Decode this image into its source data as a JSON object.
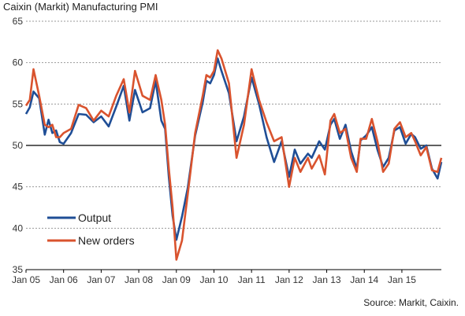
{
  "title": "Caixin (Markit) Manufacturing PMI",
  "source": "Source: Markit, Caixin.",
  "chart_data": {
    "type": "line",
    "title": "Caixin (Markit) Manufacturing PMI",
    "ylim": [
      35,
      65
    ],
    "y_ticks": [
      "35",
      "40",
      "45",
      "50",
      "55",
      "60",
      "65"
    ],
    "x_ticks": [
      "Jan 05",
      "Jan 06",
      "Jan 07",
      "Jan 08",
      "Jan 09",
      "Jan 10",
      "Jan 11",
      "Jan 12",
      "Jan 13",
      "Jan 14",
      "Jan 15"
    ],
    "x_start": "Jan 05",
    "x_end": "Oct 15",
    "reference_line": 50,
    "grid": "horizontal dotted",
    "legend_position": "bottom-left",
    "series": [
      {
        "name": "Output",
        "color": "#1f4e96",
        "values": [
          [
            2005.0,
            53.8
          ],
          [
            2005.1,
            54.6
          ],
          [
            2005.2,
            56.5
          ],
          [
            2005.35,
            55.7
          ],
          [
            2005.5,
            51.3
          ],
          [
            2005.6,
            53.1
          ],
          [
            2005.7,
            51.5
          ],
          [
            2005.8,
            51.8
          ],
          [
            2005.9,
            50.4
          ],
          [
            2006.0,
            50.2
          ],
          [
            2006.2,
            51.5
          ],
          [
            2006.4,
            53.8
          ],
          [
            2006.6,
            53.7
          ],
          [
            2006.8,
            52.8
          ],
          [
            2007.0,
            53.5
          ],
          [
            2007.2,
            52.3
          ],
          [
            2007.4,
            54.7
          ],
          [
            2007.6,
            57.2
          ],
          [
            2007.75,
            53.0
          ],
          [
            2007.9,
            56.7
          ],
          [
            2008.1,
            54.0
          ],
          [
            2008.3,
            54.5
          ],
          [
            2008.45,
            57.8
          ],
          [
            2008.6,
            53.0
          ],
          [
            2008.7,
            52.0
          ],
          [
            2008.8,
            46.2
          ],
          [
            2008.9,
            41.5
          ],
          [
            2009.0,
            38.6
          ],
          [
            2009.15,
            41.4
          ],
          [
            2009.3,
            44.8
          ],
          [
            2009.5,
            51.2
          ],
          [
            2009.7,
            55.2
          ],
          [
            2009.8,
            57.8
          ],
          [
            2009.9,
            57.5
          ],
          [
            2010.0,
            58.5
          ],
          [
            2010.1,
            60.5
          ],
          [
            2010.2,
            59.0
          ],
          [
            2010.4,
            56.3
          ],
          [
            2010.6,
            50.5
          ],
          [
            2010.8,
            53.5
          ],
          [
            2011.0,
            58.2
          ],
          [
            2011.2,
            55.0
          ],
          [
            2011.4,
            51.0
          ],
          [
            2011.6,
            48.0
          ],
          [
            2011.8,
            50.5
          ],
          [
            2012.0,
            46.2
          ],
          [
            2012.15,
            49.5
          ],
          [
            2012.3,
            47.8
          ],
          [
            2012.5,
            49.0
          ],
          [
            2012.6,
            48.5
          ],
          [
            2012.8,
            50.5
          ],
          [
            2012.95,
            49.5
          ],
          [
            2013.1,
            52.5
          ],
          [
            2013.2,
            53.2
          ],
          [
            2013.35,
            50.8
          ],
          [
            2013.5,
            52.5
          ],
          [
            2013.65,
            49.3
          ],
          [
            2013.8,
            47.2
          ],
          [
            2013.9,
            50.6
          ],
          [
            2014.05,
            51.2
          ],
          [
            2014.2,
            52.2
          ],
          [
            2014.35,
            49.5
          ],
          [
            2014.5,
            47.4
          ],
          [
            2014.65,
            48.5
          ],
          [
            2014.8,
            51.8
          ],
          [
            2014.95,
            52.2
          ],
          [
            2015.1,
            50.2
          ],
          [
            2015.25,
            51.4
          ],
          [
            2015.35,
            51.0
          ],
          [
            2015.5,
            49.6
          ],
          [
            2015.65,
            50.0
          ],
          [
            2015.8,
            47.2
          ],
          [
            2015.95,
            46.0
          ],
          [
            2016.05,
            48.0
          ]
        ]
      },
      {
        "name": "New orders",
        "color": "#d9532e",
        "values": [
          [
            2005.0,
            54.8
          ],
          [
            2005.1,
            55.5
          ],
          [
            2005.2,
            59.2
          ],
          [
            2005.35,
            56.0
          ],
          [
            2005.5,
            52.5
          ],
          [
            2005.6,
            52.2
          ],
          [
            2005.7,
            52.5
          ],
          [
            2005.8,
            51.0
          ],
          [
            2005.9,
            51.0
          ],
          [
            2006.0,
            51.5
          ],
          [
            2006.2,
            52.0
          ],
          [
            2006.4,
            54.9
          ],
          [
            2006.6,
            54.5
          ],
          [
            2006.8,
            53.0
          ],
          [
            2007.0,
            54.2
          ],
          [
            2007.2,
            53.5
          ],
          [
            2007.4,
            56.0
          ],
          [
            2007.6,
            58.0
          ],
          [
            2007.75,
            54.0
          ],
          [
            2007.9,
            59.0
          ],
          [
            2008.1,
            56.0
          ],
          [
            2008.3,
            55.5
          ],
          [
            2008.45,
            58.5
          ],
          [
            2008.6,
            55.5
          ],
          [
            2008.7,
            52.5
          ],
          [
            2008.8,
            47.2
          ],
          [
            2008.9,
            42.5
          ],
          [
            2009.0,
            36.2
          ],
          [
            2009.15,
            38.5
          ],
          [
            2009.3,
            44.0
          ],
          [
            2009.5,
            51.5
          ],
          [
            2009.7,
            56.0
          ],
          [
            2009.8,
            58.5
          ],
          [
            2009.9,
            58.2
          ],
          [
            2010.0,
            59.0
          ],
          [
            2010.1,
            61.5
          ],
          [
            2010.2,
            60.5
          ],
          [
            2010.4,
            57.5
          ],
          [
            2010.6,
            48.5
          ],
          [
            2010.8,
            52.5
          ],
          [
            2011.0,
            59.2
          ],
          [
            2011.2,
            55.5
          ],
          [
            2011.4,
            52.8
          ],
          [
            2011.6,
            50.5
          ],
          [
            2011.8,
            51.0
          ],
          [
            2012.0,
            45.0
          ],
          [
            2012.15,
            48.5
          ],
          [
            2012.3,
            46.8
          ],
          [
            2012.5,
            48.5
          ],
          [
            2012.6,
            47.2
          ],
          [
            2012.8,
            48.8
          ],
          [
            2012.95,
            46.5
          ],
          [
            2013.1,
            53.0
          ],
          [
            2013.2,
            53.8
          ],
          [
            2013.35,
            51.5
          ],
          [
            2013.5,
            52.0
          ],
          [
            2013.65,
            48.5
          ],
          [
            2013.8,
            46.8
          ],
          [
            2013.9,
            50.8
          ],
          [
            2014.05,
            50.8
          ],
          [
            2014.2,
            53.2
          ],
          [
            2014.35,
            50.5
          ],
          [
            2014.5,
            46.8
          ],
          [
            2014.65,
            47.8
          ],
          [
            2014.8,
            52.0
          ],
          [
            2014.95,
            52.8
          ],
          [
            2015.1,
            51.0
          ],
          [
            2015.25,
            51.5
          ],
          [
            2015.35,
            50.5
          ],
          [
            2015.5,
            48.8
          ],
          [
            2015.65,
            49.8
          ],
          [
            2015.8,
            47.0
          ],
          [
            2015.95,
            46.8
          ],
          [
            2016.05,
            48.5
          ]
        ]
      }
    ]
  }
}
